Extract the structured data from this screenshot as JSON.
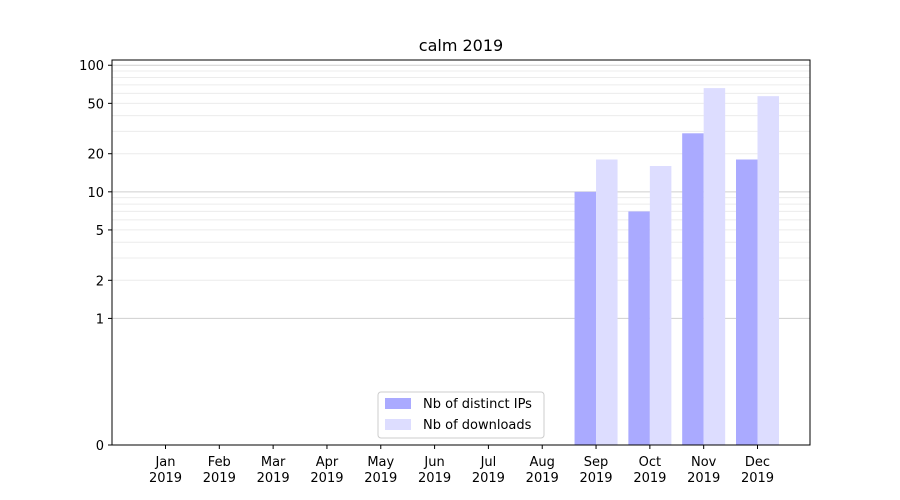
{
  "chart_data": {
    "type": "bar",
    "title": "calm 2019",
    "xlabel": "",
    "ylabel": "",
    "y_scale": "symlog",
    "ylim": [
      0,
      110
    ],
    "y_ticks": [
      0,
      1,
      2,
      5,
      10,
      20,
      50,
      100
    ],
    "grid": "horizontal",
    "legend_position": "bottom-center",
    "categories": [
      "Jan\n2019",
      "Feb\n2019",
      "Mar\n2019",
      "Apr\n2019",
      "May\n2019",
      "Jun\n2019",
      "Jul\n2019",
      "Aug\n2019",
      "Sep\n2019",
      "Oct\n2019",
      "Nov\n2019",
      "Dec\n2019"
    ],
    "series": [
      {
        "name": "Nb of distinct IPs",
        "color": "#aaaaff",
        "values": [
          0,
          0,
          0,
          0,
          0,
          0,
          0,
          0,
          10,
          7,
          29,
          18
        ]
      },
      {
        "name": "Nb of downloads",
        "color": "#ddddff",
        "values": [
          0,
          0,
          0,
          0,
          0,
          0,
          0,
          0,
          18,
          16,
          66,
          57
        ]
      }
    ]
  }
}
